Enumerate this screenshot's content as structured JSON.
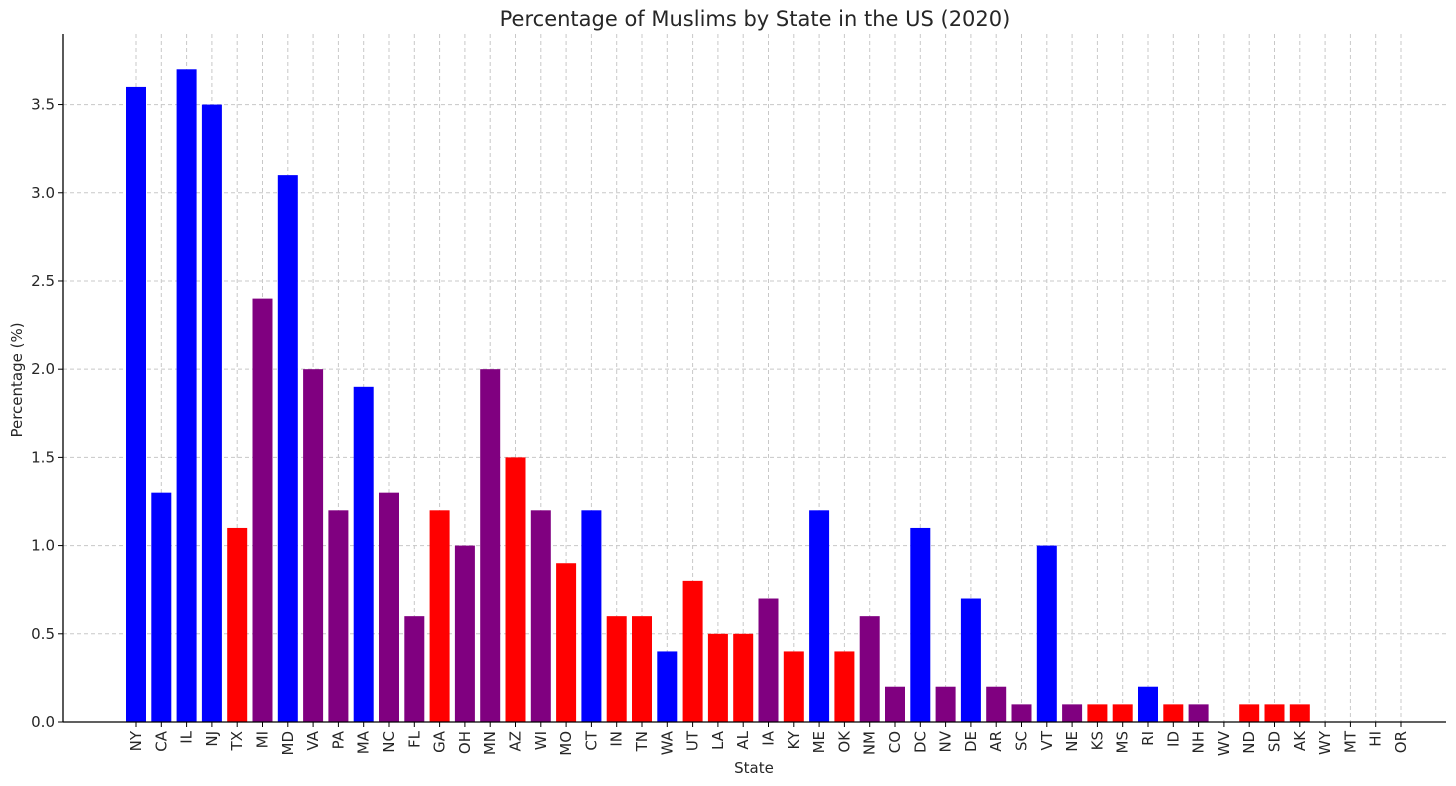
{
  "chart_data": {
    "type": "bar",
    "title": "Percentage of Muslims by State in the US (2020)",
    "xlabel": "State",
    "ylabel": "Percentage (%)",
    "ylim": [
      0,
      3.9
    ],
    "yticks": [
      0.0,
      0.5,
      1.0,
      1.5,
      2.0,
      2.5,
      3.0,
      3.5
    ],
    "ytick_labels": [
      "0.0",
      "0.5",
      "1.0",
      "1.5",
      "2.0",
      "2.5",
      "3.0",
      "3.5"
    ],
    "grid": true,
    "legend": "none",
    "colors": {
      "blue": "#0000ff",
      "red": "#ff0000",
      "purple": "#800080"
    },
    "categories": [
      "NY",
      "CA",
      "IL",
      "NJ",
      "TX",
      "MI",
      "MD",
      "VA",
      "PA",
      "MA",
      "NC",
      "FL",
      "GA",
      "OH",
      "MN",
      "AZ",
      "WI",
      "MO",
      "CT",
      "IN",
      "TN",
      "WA",
      "UT",
      "LA",
      "AL",
      "IA",
      "KY",
      "ME",
      "OK",
      "NM",
      "CO",
      "DC",
      "NV",
      "DE",
      "AR",
      "SC",
      "VT",
      "NE",
      "KS",
      "MS",
      "RI",
      "ID",
      "NH",
      "WV",
      "ND",
      "SD",
      "AK",
      "WY",
      "MT",
      "HI",
      "OR"
    ],
    "values": [
      3.6,
      1.3,
      3.7,
      3.5,
      1.1,
      2.4,
      3.1,
      2.0,
      1.2,
      1.9,
      1.3,
      0.6,
      1.2,
      1.0,
      2.0,
      1.5,
      1.2,
      0.9,
      1.2,
      0.6,
      0.6,
      0.4,
      0.8,
      0.5,
      0.5,
      0.7,
      0.4,
      1.2,
      0.4,
      0.6,
      0.2,
      1.1,
      0.2,
      0.7,
      0.2,
      0.1,
      1.0,
      0.1,
      0.1,
      0.1,
      0.2,
      0.1,
      0.1,
      0.0,
      0.1,
      0.1,
      0.1,
      0.0,
      0.0,
      0.0,
      0.0
    ],
    "bar_colors": [
      "blue",
      "blue",
      "blue",
      "blue",
      "red",
      "purple",
      "blue",
      "purple",
      "purple",
      "blue",
      "purple",
      "purple",
      "red",
      "purple",
      "purple",
      "red",
      "purple",
      "red",
      "blue",
      "red",
      "red",
      "blue",
      "red",
      "red",
      "red",
      "purple",
      "red",
      "blue",
      "red",
      "purple",
      "purple",
      "blue",
      "purple",
      "blue",
      "purple",
      "purple",
      "blue",
      "purple",
      "red",
      "red",
      "blue",
      "red",
      "purple",
      "purple",
      "red",
      "red",
      "red",
      "purple",
      "purple",
      "purple",
      "purple"
    ]
  }
}
